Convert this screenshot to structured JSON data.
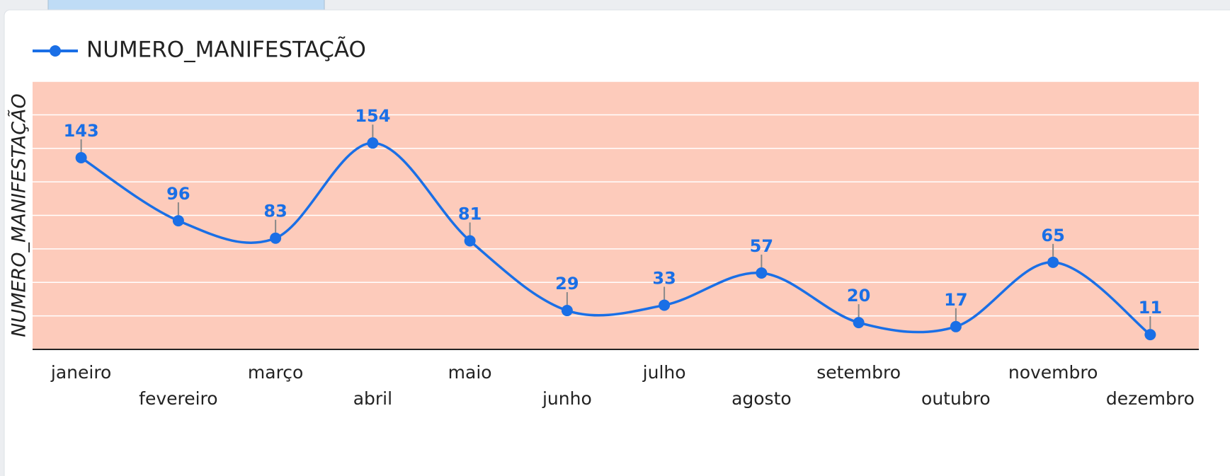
{
  "chart_data": {
    "type": "line",
    "categories": [
      "janeiro",
      "fevereiro",
      "março",
      "abril",
      "maio",
      "junho",
      "julho",
      "agosto",
      "setembro",
      "outubro",
      "novembro",
      "dezembro"
    ],
    "series": [
      {
        "name": "NUMERO_MANIFESTAÇÃO",
        "color": "#1a6fe6",
        "values": [
          143,
          96,
          83,
          154,
          81,
          29,
          33,
          57,
          20,
          17,
          65,
          11
        ]
      }
    ],
    "y_label": "NUMERO_MANIFESTAÇÃO",
    "ylim": [
      0,
      200
    ],
    "yticks": [
      0,
      25,
      50,
      75,
      100,
      125,
      150,
      175,
      200
    ],
    "grid": true,
    "legend": "top-left",
    "plot_background": "#fdcbbb"
  }
}
